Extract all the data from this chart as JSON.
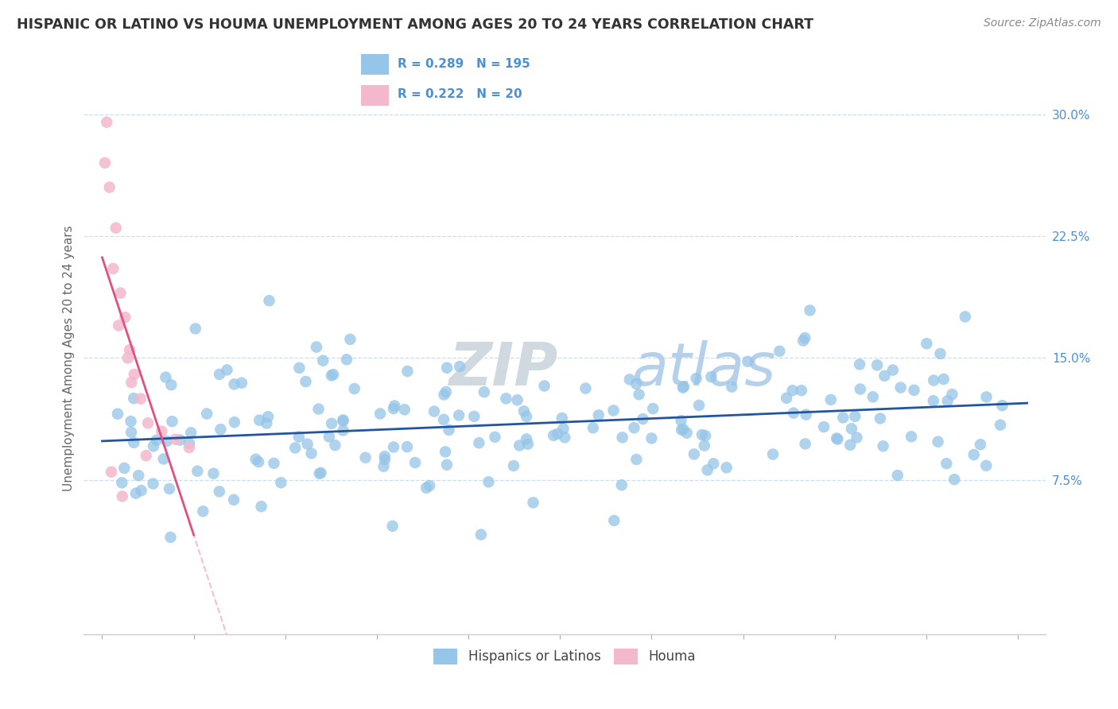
{
  "title": "HISPANIC OR LATINO VS HOUMA UNEMPLOYMENT AMONG AGES 20 TO 24 YEARS CORRELATION CHART",
  "source": "Source: ZipAtlas.com",
  "ylabel": "Unemployment Among Ages 20 to 24 years",
  "y_tick_values": [
    7.5,
    15.0,
    22.5,
    30.0
  ],
  "y_tick_labels": [
    "7.5%",
    "15.0%",
    "22.5%",
    "30.0%"
  ],
  "xlim": [
    -2,
    103
  ],
  "ylim": [
    -2,
    32
  ],
  "legend_labels": [
    "Hispanics or Latinos",
    "Houma"
  ],
  "blue_color": "#95C5E8",
  "pink_color": "#F4B8CC",
  "blue_line_color": "#2255A0",
  "pink_line_color": "#E05080",
  "pink_dash_color": "#F4B8CC",
  "R_blue": 0.289,
  "N_blue": 195,
  "R_pink": 0.222,
  "N_pink": 20,
  "legend_text_color": "#4A90D9",
  "watermark_zip": "ZIP",
  "watermark_atlas": "atlas",
  "grid_color": "#CCDDEE",
  "spine_color": "#CCCCCC",
  "tick_color": "#AAAAAA",
  "blue_seed": 77,
  "pink_x": [
    0.5,
    0.8,
    1.2,
    1.5,
    2.0,
    2.5,
    3.0,
    3.5,
    4.2,
    5.0,
    6.5,
    8.0,
    9.5,
    1.8,
    2.8,
    3.2,
    4.8,
    0.3,
    1.0,
    2.2
  ],
  "pink_y": [
    29.5,
    25.5,
    20.5,
    23.0,
    19.0,
    17.5,
    15.5,
    14.0,
    12.5,
    11.0,
    10.5,
    10.0,
    9.5,
    17.0,
    15.0,
    13.5,
    9.0,
    27.0,
    8.0,
    6.5
  ]
}
